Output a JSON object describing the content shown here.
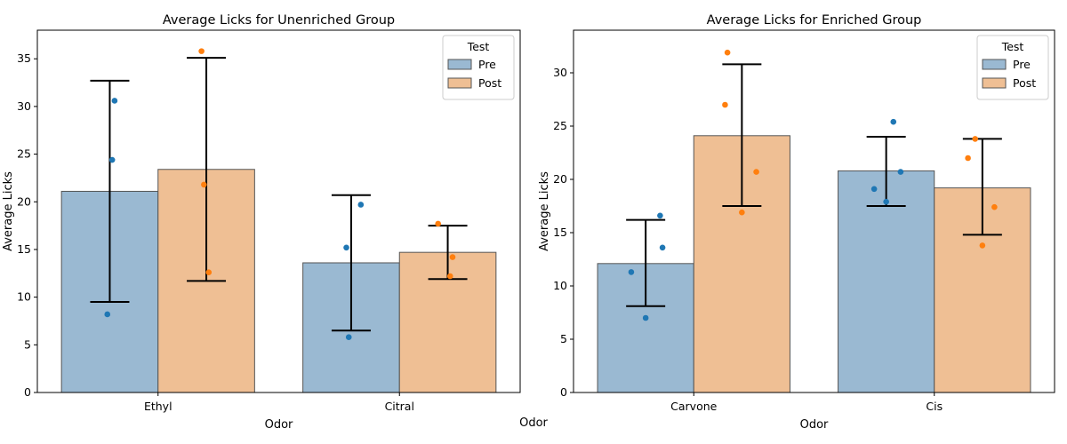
{
  "figure": {
    "shared_xlabel": "Odor"
  },
  "colors": {
    "pre": "#9ab9d2",
    "post": "#efbf94",
    "pre_dot": "#1f77b4",
    "post_dot": "#ff7f0e",
    "bar_edge": "#555555"
  },
  "chart_data": [
    {
      "type": "bar",
      "title": "Average Licks for Unenriched Group",
      "xlabel": "Odor",
      "ylabel": "Average Licks",
      "ylim": [
        0,
        38
      ],
      "yticks": [
        0,
        5,
        10,
        15,
        20,
        25,
        30,
        35
      ],
      "categories": [
        "Ethyl",
        "Citral"
      ],
      "legend": {
        "title": "Test",
        "position": "top-right"
      },
      "series": [
        {
          "name": "Pre",
          "values": [
            21.1,
            13.6
          ],
          "err_low": [
            9.5,
            6.5
          ],
          "err_high": [
            32.7,
            20.7
          ],
          "points": [
            [
              30.6,
              24.4,
              8.2
            ],
            [
              19.7,
              15.2,
              5.8
            ]
          ]
        },
        {
          "name": "Post",
          "values": [
            23.4,
            14.7
          ],
          "err_low": [
            11.7,
            11.9
          ],
          "err_high": [
            35.1,
            17.5
          ],
          "points": [
            [
              35.8,
              21.8,
              12.6
            ],
            [
              17.7,
              14.2,
              12.2
            ]
          ]
        }
      ]
    },
    {
      "type": "bar",
      "title": "Average Licks for Enriched Group",
      "xlabel": "Odor",
      "ylabel": "Average Licks",
      "ylim": [
        0,
        34
      ],
      "yticks": [
        0,
        5,
        10,
        15,
        20,
        25,
        30
      ],
      "categories": [
        "Carvone",
        "Cis"
      ],
      "legend": {
        "title": "Test",
        "position": "top-right"
      },
      "series": [
        {
          "name": "Pre",
          "values": [
            12.1,
            20.8
          ],
          "err_low": [
            8.1,
            17.5
          ],
          "err_high": [
            16.2,
            24.0
          ],
          "points": [
            [
              16.6,
              13.6,
              11.3,
              7.0
            ],
            [
              25.4,
              20.7,
              19.1,
              17.9
            ]
          ]
        },
        {
          "name": "Post",
          "values": [
            24.1,
            19.2
          ],
          "err_low": [
            17.5,
            14.8
          ],
          "err_high": [
            30.8,
            23.8
          ],
          "points": [
            [
              31.9,
              27.0,
              20.7,
              16.9
            ],
            [
              23.8,
              22.0,
              17.4,
              13.8
            ]
          ]
        }
      ]
    }
  ]
}
